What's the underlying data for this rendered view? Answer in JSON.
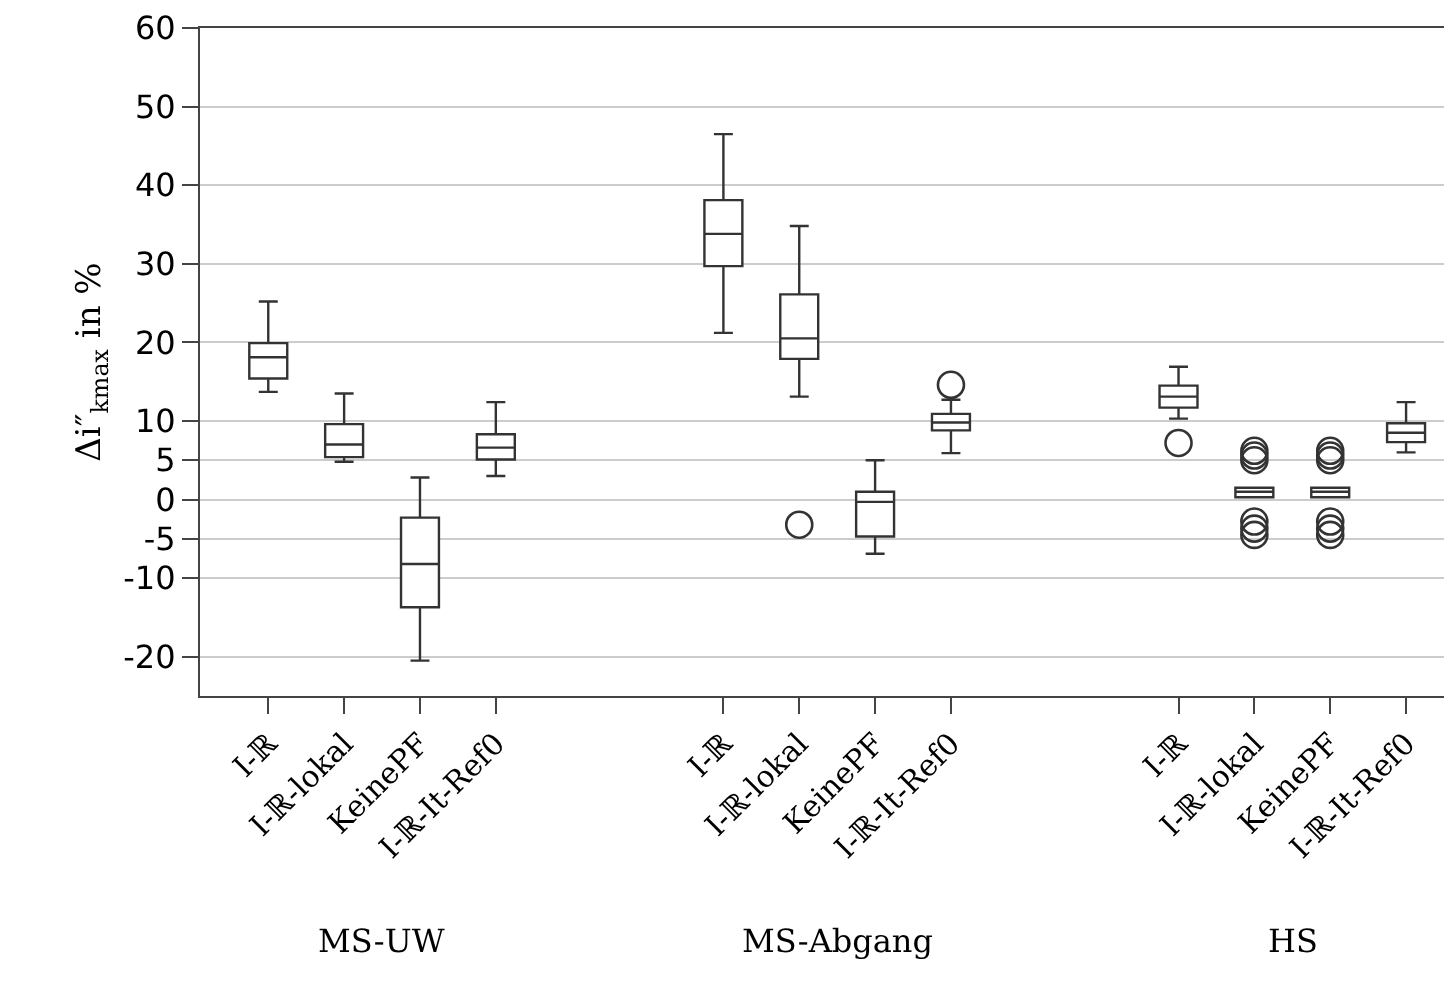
{
  "chart_data": {
    "type": "box",
    "ylabel": "Δi″$_{kmax}$ in %",
    "color": "#333333",
    "categories": [
      "I-ℝ",
      "I-ℝ-lokal",
      "KeinePF",
      "I-ℝ-It-Ref0",
      null,
      null,
      "I-ℝ",
      "I-ℝ-lokal",
      "KeinePF",
      "I-ℝ-It-Ref0",
      null,
      null,
      "I-ℝ",
      "I-ℝ-lokal",
      "KeinePF",
      "I-ℝ-It-Ref0"
    ],
    "boxes": [
      {
        "low": 13.7,
        "q1": 15.4,
        "median": 18.1,
        "q3": 19.9,
        "high": 25.2
      },
      {
        "low": 4.8,
        "q1": 5.4,
        "median": 7.0,
        "q3": 9.6,
        "high": 13.5
      },
      {
        "low": -20.5,
        "q1": -13.7,
        "median": -8.2,
        "q3": -2.3,
        "high": 2.8
      },
      {
        "low": 3.0,
        "q1": 5.1,
        "median": 6.6,
        "q3": 8.3,
        "high": 12.4
      },
      null,
      null,
      {
        "low": 21.2,
        "q1": 29.7,
        "median": 33.8,
        "q3": 38.1,
        "high": 46.5
      },
      {
        "low": 13.1,
        "q1": 17.9,
        "median": 20.5,
        "q3": 26.1,
        "high": 34.8,
        "outliers": [
          -3.2
        ]
      },
      {
        "low": -6.9,
        "q1": -4.7,
        "median": -0.3,
        "q3": 1.0,
        "high": 5.0
      },
      {
        "low": 5.9,
        "q1": 8.8,
        "median": 9.8,
        "q3": 10.9,
        "high": 12.7,
        "outliers": [
          14.6
        ]
      },
      null,
      null,
      {
        "low": 10.3,
        "q1": 11.7,
        "median": 13.1,
        "q3": 14.5,
        "high": 16.9,
        "outliers": [
          7.2
        ]
      },
      {
        "low": 0.3,
        "q1": 0.3,
        "median": 1.0,
        "q3": 1.5,
        "high": 1.5,
        "outliers": [
          6.2,
          5.6,
          5.0,
          -2.8,
          -3.7,
          -4.5
        ]
      },
      {
        "low": 0.3,
        "q1": 0.3,
        "median": 1.0,
        "q3": 1.5,
        "high": 1.5,
        "outliers": [
          6.2,
          5.6,
          5.0,
          -2.8,
          -3.7,
          -4.5
        ]
      },
      {
        "low": 6.0,
        "q1": 7.3,
        "median": 8.5,
        "q3": 9.7,
        "high": 12.4
      }
    ],
    "ylim": [
      -25,
      60
    ],
    "yticks": [
      -20,
      -10,
      -5,
      0,
      5,
      10,
      20,
      30,
      40,
      50,
      60
    ],
    "grid": "y",
    "annotations": [
      "MS-UW",
      "MS-Abgang",
      "HS"
    ]
  }
}
